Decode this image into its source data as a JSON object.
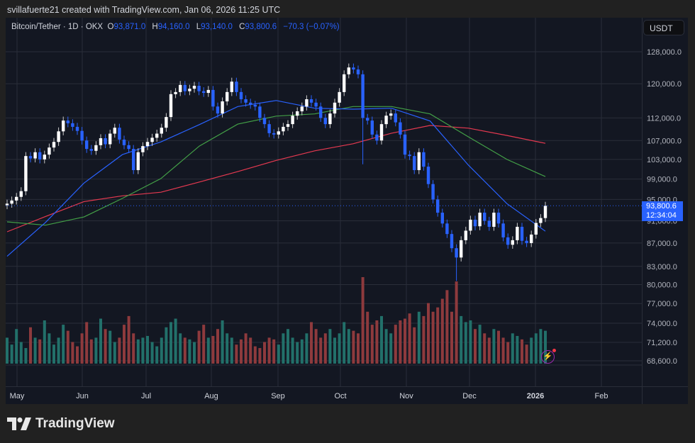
{
  "credit": "svillafuerte21 created with TradingView.com, Jan 06, 2026 11:25 UTC",
  "legend": {
    "symbol": "Bitcoin/Tether · 1D · OKX",
    "o_label": "O",
    "o": "93,871.0",
    "h_label": "H",
    "h": "94,160.0",
    "l_label": "L",
    "l": "93,140.0",
    "c_label": "C",
    "c": "93,800.6",
    "change": "−70.3 (−0.07%)"
  },
  "currency_button": "USDT",
  "last_price": {
    "price": "93,800.6",
    "countdown": "12:34:04",
    "value": 93800.6
  },
  "logo_text": "TradingView",
  "colors": {
    "background": "#131722",
    "up_candle": "#ffffff",
    "down_candle": "#2962ff",
    "volume_up": "#22706a",
    "volume_down": "#8e3a3d",
    "ma_fast": "#2962ff",
    "ma_mid": "#43a047",
    "ma_slow": "#e53950",
    "accent": "#2962ff"
  },
  "chart_data": {
    "type": "candlestick",
    "interval": "1D",
    "y_scale": "log",
    "ylim": [
      68600,
      128000
    ],
    "y_ticks": [
      128000,
      120000,
      112000,
      107000,
      103000,
      99000,
      95000,
      91000,
      87000,
      83000,
      80000,
      77000,
      74000,
      71200,
      68600
    ],
    "y_tick_labels": [
      "128,000.0",
      "120,000.0",
      "112,000.0",
      "107,000.0",
      "103,000.0",
      "99,000.0",
      "95,000.0",
      "91,000.0",
      "87,000.0",
      "83,000.0",
      "80,000.0",
      "77,000.0",
      "74,000.0",
      "71,200.0",
      "68,600.0"
    ],
    "x_tick_labels": [
      "May",
      "Jun",
      "Jul",
      "Aug",
      "Sep",
      "Oct",
      "Nov",
      "Dec",
      "2026",
      "Feb"
    ],
    "grid": true,
    "first_open": 93900,
    "closes": [
      94200,
      94800,
      95500,
      96600,
      103700,
      103200,
      104500,
      103000,
      104000,
      105500,
      106700,
      109000,
      111400,
      110800,
      110000,
      109100,
      107000,
      105200,
      104800,
      106000,
      107500,
      106200,
      108500,
      109800,
      107200,
      106000,
      105200,
      100800,
      104500,
      105800,
      106700,
      107600,
      108500,
      109800,
      112200,
      117500,
      118000,
      119700,
      118200,
      118800,
      119500,
      118200,
      117800,
      118500,
      114600,
      113000,
      115800,
      118000,
      120500,
      118000,
      116300,
      115500,
      115000,
      114600,
      112000,
      110600,
      108600,
      108300,
      109000,
      110000,
      110600,
      112500,
      113500,
      114600,
      116300,
      115500,
      114600,
      112000,
      110600,
      113000,
      115500,
      118000,
      122300,
      124000,
      123500,
      122300,
      112000,
      111400,
      108300,
      107000,
      110600,
      112500,
      113000,
      111000,
      108300,
      104000,
      103700,
      100800,
      104500,
      101500,
      98000,
      95000,
      92500,
      90500,
      88600,
      86100,
      84500,
      87500,
      89200,
      91200,
      90000,
      92500,
      91000,
      89900,
      92500,
      90500,
      88000,
      86700,
      87500,
      89900,
      87400,
      87000,
      88500,
      90600,
      91500,
      93800.6
    ],
    "notable_lows": {
      "76": 102000,
      "96": 80600
    },
    "volumes": [
      30,
      22,
      40,
      25,
      18,
      42,
      30,
      28,
      50,
      35,
      22,
      30,
      45,
      38,
      25,
      20,
      35,
      48,
      28,
      30,
      52,
      40,
      38,
      25,
      30,
      45,
      55,
      35,
      28,
      30,
      32,
      25,
      20,
      30,
      42,
      48,
      52,
      35,
      30,
      28,
      25,
      38,
      45,
      30,
      32,
      40,
      50,
      35,
      30,
      22,
      28,
      35,
      30,
      20,
      18,
      25,
      30,
      28,
      22,
      35,
      40,
      30,
      25,
      28,
      35,
      48,
      40,
      30,
      35,
      40,
      30,
      35,
      48,
      40,
      38,
      35,
      100,
      60,
      45,
      50,
      55,
      40,
      35,
      45,
      50,
      52,
      58,
      42,
      60,
      55,
      70,
      60,
      65,
      75,
      85,
      60,
      95,
      55,
      48,
      50,
      40,
      45,
      35,
      30,
      40,
      38,
      30,
      25,
      35,
      32,
      28,
      22,
      30,
      35,
      40,
      38
    ],
    "moving_averages_sampled_evenly": {
      "fast": [
        84700,
        90700,
        98200,
        104000,
        106700,
        110500,
        114600,
        116000,
        114200,
        114000,
        114200,
        111300,
        101800,
        94200,
        89100
      ],
      "mid": [
        90800,
        90200,
        91700,
        95200,
        99100,
        105800,
        110600,
        112400,
        112900,
        114600,
        114600,
        112900,
        107800,
        103000,
        99500
      ],
      "slow": [
        89000,
        91800,
        94600,
        95700,
        96400,
        98400,
        100500,
        102800,
        104800,
        106300,
        108600,
        110300,
        109700,
        108100,
        106400
      ]
    }
  }
}
